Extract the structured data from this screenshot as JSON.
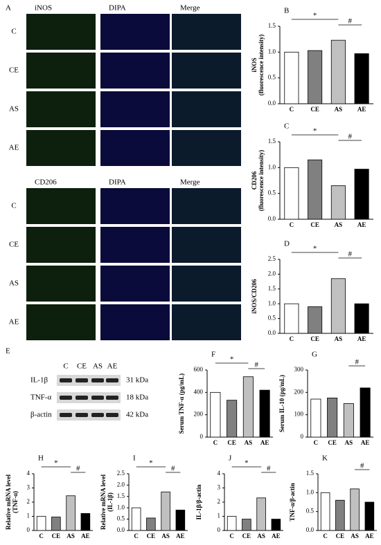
{
  "panel_a": {
    "label": "A",
    "top_columns": [
      "iNOS",
      "DIPA",
      "Merge"
    ],
    "bottom_columns": [
      "CD206",
      "DIPA",
      "Merge"
    ],
    "rows": [
      "C",
      "CE",
      "AS",
      "AE"
    ]
  },
  "panel_e": {
    "label": "E",
    "lanes": [
      "C",
      "CE",
      "AS",
      "AE"
    ],
    "bands": [
      {
        "name": "IL-1β",
        "size": "31 kDa"
      },
      {
        "name": "TNF-α",
        "size": "18 kDa"
      },
      {
        "name": "β-actin",
        "size": "42 kDa"
      }
    ]
  },
  "chart_data": [
    {
      "type": "bar",
      "panel": "B",
      "ylabel": [
        "iNOS",
        "(fluorescence intensity)"
      ],
      "categories": [
        "C",
        "CE",
        "AS",
        "AE"
      ],
      "values": [
        1.0,
        1.03,
        1.23,
        0.97
      ],
      "colors": [
        "#ffffff",
        "#808080",
        "#c0c0c0",
        "#000000"
      ],
      "ylim": [
        0,
        1.5
      ],
      "yticks": [
        {
          "value": 0,
          "label": "0.0"
        },
        {
          "value": 0.5,
          "label": "0.5"
        },
        {
          "value": 1,
          "label": "1.0"
        },
        {
          "value": 1.5,
          "label": "1.5"
        }
      ],
      "annotations": [
        "*",
        "#"
      ]
    },
    {
      "type": "bar",
      "panel": "C",
      "ylabel": [
        "CD206",
        "(fluorescence intensity)"
      ],
      "categories": [
        "C",
        "CE",
        "AS",
        "AE"
      ],
      "values": [
        1.0,
        1.15,
        0.65,
        0.97
      ],
      "colors": [
        "#ffffff",
        "#808080",
        "#c0c0c0",
        "#000000"
      ],
      "ylim": [
        0,
        1.5
      ],
      "yticks": [
        {
          "value": 0,
          "label": "0.0"
        },
        {
          "value": 0.5,
          "label": "0.5"
        },
        {
          "value": 1,
          "label": "1.0"
        },
        {
          "value": 1.5,
          "label": "1.5"
        }
      ],
      "annotations": [
        "*",
        "#"
      ]
    },
    {
      "type": "bar",
      "panel": "D",
      "ylabel": [
        "iNOS/CD206"
      ],
      "categories": [
        "C",
        "CE",
        "AS",
        "AE"
      ],
      "values": [
        1.0,
        0.9,
        1.85,
        1.0
      ],
      "colors": [
        "#ffffff",
        "#808080",
        "#c0c0c0",
        "#000000"
      ],
      "ylim": [
        0,
        2.5
      ],
      "yticks": [
        {
          "value": 0,
          "label": "0.0"
        },
        {
          "value": 0.5,
          "label": "0.5"
        },
        {
          "value": 1,
          "label": "1.0"
        },
        {
          "value": 1.5,
          "label": "1.5"
        },
        {
          "value": 2,
          "label": "2.0"
        },
        {
          "value": 2.5,
          "label": "2.5"
        }
      ],
      "annotations": [
        "*",
        "#"
      ]
    },
    {
      "type": "bar",
      "panel": "F",
      "ylabel": [
        "Serum TNF-α (pg/mL)"
      ],
      "categories": [
        "C",
        "CE",
        "AS",
        "AE"
      ],
      "values": [
        400,
        330,
        540,
        420
      ],
      "colors": [
        "#ffffff",
        "#808080",
        "#c0c0c0",
        "#000000"
      ],
      "ylim": [
        0,
        600
      ],
      "yticks": [
        0,
        200,
        400,
        600
      ],
      "annotations": [
        "*",
        "#"
      ]
    },
    {
      "type": "bar",
      "panel": "G",
      "ylabel": [
        "Serum IL-10 (pg/mL)"
      ],
      "categories": [
        "C",
        "CE",
        "AS",
        "AE"
      ],
      "values": [
        170,
        175,
        150,
        220
      ],
      "colors": [
        "#ffffff",
        "#808080",
        "#c0c0c0",
        "#000000"
      ],
      "ylim": [
        0,
        300
      ],
      "yticks": [
        0,
        100,
        200,
        300
      ],
      "annotations": [
        "#"
      ]
    },
    {
      "type": "bar",
      "panel": "H",
      "ylabel": [
        "Relative mRNA level",
        "(TNF-α)"
      ],
      "categories": [
        "C",
        "CE",
        "AS",
        "AE"
      ],
      "values": [
        1.0,
        0.95,
        2.45,
        1.2
      ],
      "colors": [
        "#ffffff",
        "#808080",
        "#c0c0c0",
        "#000000"
      ],
      "ylim": [
        0,
        4
      ],
      "yticks": [
        0,
        1,
        2,
        3,
        4
      ],
      "annotations": [
        "*",
        "#"
      ]
    },
    {
      "type": "bar",
      "panel": "I",
      "ylabel": [
        "Relative mRNA level",
        "(IL-1β)"
      ],
      "categories": [
        "C",
        "CE",
        "AS",
        "AE"
      ],
      "values": [
        1.0,
        0.55,
        1.7,
        0.9
      ],
      "colors": [
        "#ffffff",
        "#808080",
        "#c0c0c0",
        "#000000"
      ],
      "ylim": [
        0,
        2.5
      ],
      "yticks": [
        {
          "value": 0,
          "label": "0.0"
        },
        {
          "value": 0.5,
          "label": "0.5"
        },
        {
          "value": 1,
          "label": "1.0"
        },
        {
          "value": 1.5,
          "label": "1.5"
        },
        {
          "value": 2,
          "label": "2.0"
        },
        {
          "value": 2.5,
          "label": "2.5"
        }
      ],
      "annotations": [
        "*",
        "#"
      ]
    },
    {
      "type": "bar",
      "panel": "J",
      "ylabel": [
        "IL-1β/β-actin"
      ],
      "categories": [
        "C",
        "CE",
        "AS",
        "AE"
      ],
      "values": [
        1.0,
        0.8,
        2.3,
        0.8
      ],
      "colors": [
        "#ffffff",
        "#808080",
        "#c0c0c0",
        "#000000"
      ],
      "ylim": [
        0,
        4
      ],
      "yticks": [
        0,
        1,
        2,
        3,
        4
      ],
      "annotations": [
        "*",
        "#"
      ]
    },
    {
      "type": "bar",
      "panel": "K",
      "ylabel": [
        "TNF-α/β-actin"
      ],
      "categories": [
        "C",
        "CE",
        "AS",
        "AE"
      ],
      "values": [
        1.0,
        0.8,
        1.1,
        0.75
      ],
      "colors": [
        "#ffffff",
        "#808080",
        "#c0c0c0",
        "#000000"
      ],
      "ylim": [
        0,
        1.5
      ],
      "yticks": [
        {
          "value": 0,
          "label": "0.0"
        },
        {
          "value": 0.5,
          "label": "0.5"
        },
        {
          "value": 1,
          "label": "1.0"
        },
        {
          "value": 1.5,
          "label": "1.5"
        }
      ],
      "annotations": [
        "#"
      ]
    }
  ]
}
